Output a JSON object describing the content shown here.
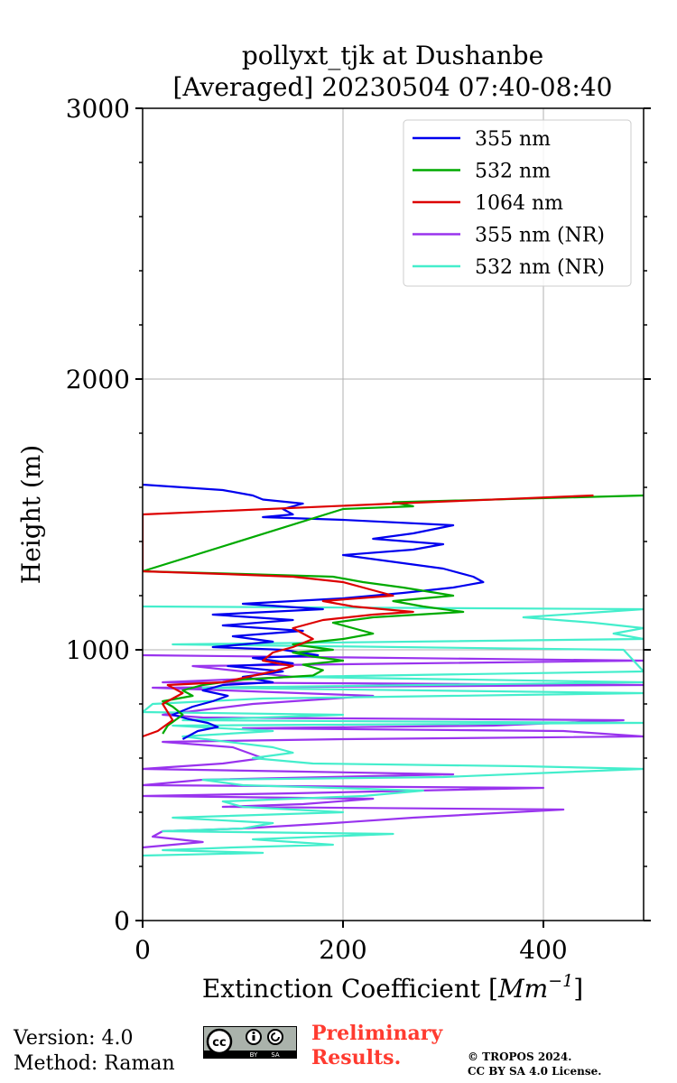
{
  "chart_data": {
    "type": "line",
    "title_line1": "pollyxt_tjk at Dushanbe",
    "title_line2": "[Averaged] 20230504 07:40-08:40",
    "xlabel_text": "Extinction Coefficient [",
    "xlabel_unit_base": "Mm",
    "xlabel_unit_exp": "−1",
    "xlabel_close": "]",
    "ylabel": "Height (m)",
    "xlim": [
      0,
      500
    ],
    "ylim": [
      0,
      3000
    ],
    "xticks": [
      0,
      200,
      400
    ],
    "yticks": [
      0,
      1000,
      2000,
      3000
    ],
    "xtick_labels": [
      "0",
      "200",
      "400"
    ],
    "ytick_labels": [
      "0",
      "1000",
      "2000",
      "3000"
    ],
    "grid": true,
    "legend_position": "top-right",
    "series": [
      {
        "name": "355 nm",
        "color": "#0000ee",
        "points": [
          [
            40,
            670
          ],
          [
            55,
            700
          ],
          [
            75,
            715
          ],
          [
            65,
            730
          ],
          [
            45,
            745
          ],
          [
            30,
            760
          ],
          [
            50,
            790
          ],
          [
            70,
            810
          ],
          [
            85,
            830
          ],
          [
            60,
            850
          ],
          [
            80,
            870
          ],
          [
            130,
            880
          ],
          [
            100,
            900
          ],
          [
            140,
            920
          ],
          [
            85,
            940
          ],
          [
            150,
            950
          ],
          [
            110,
            970
          ],
          [
            175,
            980
          ],
          [
            140,
            1000
          ],
          [
            70,
            1010
          ],
          [
            130,
            1030
          ],
          [
            90,
            1050
          ],
          [
            160,
            1070
          ],
          [
            80,
            1090
          ],
          [
            150,
            1110
          ],
          [
            70,
            1130
          ],
          [
            180,
            1150
          ],
          [
            100,
            1170
          ],
          [
            200,
            1190
          ],
          [
            260,
            1210
          ],
          [
            310,
            1230
          ],
          [
            340,
            1250
          ],
          [
            330,
            1270
          ],
          [
            300,
            1300
          ],
          [
            260,
            1320
          ],
          [
            200,
            1350
          ],
          [
            270,
            1370
          ],
          [
            300,
            1390
          ],
          [
            230,
            1410
          ],
          [
            270,
            1430
          ],
          [
            310,
            1460
          ],
          [
            200,
            1480
          ],
          [
            120,
            1490
          ],
          [
            150,
            1500
          ],
          [
            140,
            1520
          ],
          [
            160,
            1540
          ],
          [
            120,
            1555
          ],
          [
            110,
            1570
          ],
          [
            80,
            1590
          ],
          [
            0,
            1610
          ]
        ]
      },
      {
        "name": "532 nm",
        "color": "#00aa00",
        "points": [
          [
            20,
            690
          ],
          [
            25,
            720
          ],
          [
            40,
            760
          ],
          [
            30,
            790
          ],
          [
            20,
            810
          ],
          [
            50,
            830
          ],
          [
            40,
            850
          ],
          [
            60,
            870
          ],
          [
            100,
            890
          ],
          [
            170,
            905
          ],
          [
            180,
            925
          ],
          [
            160,
            945
          ],
          [
            200,
            960
          ],
          [
            170,
            975
          ],
          [
            150,
            990
          ],
          [
            190,
            1000
          ],
          [
            150,
            1020
          ],
          [
            200,
            1040
          ],
          [
            230,
            1060
          ],
          [
            210,
            1080
          ],
          [
            190,
            1100
          ],
          [
            230,
            1120
          ],
          [
            320,
            1140
          ],
          [
            280,
            1160
          ],
          [
            250,
            1180
          ],
          [
            310,
            1200
          ],
          [
            260,
            1230
          ],
          [
            220,
            1250
          ],
          [
            190,
            1270
          ],
          [
            100,
            1280
          ],
          [
            0,
            1290
          ],
          [
            200,
            1520
          ],
          [
            270,
            1530
          ],
          [
            250,
            1545
          ],
          [
            500,
            1570
          ]
        ]
      },
      {
        "name": "1064 nm",
        "color": "#dd0000",
        "points": [
          [
            0,
            680
          ],
          [
            15,
            700
          ],
          [
            30,
            740
          ],
          [
            20,
            800
          ],
          [
            40,
            840
          ],
          [
            25,
            870
          ],
          [
            80,
            880
          ],
          [
            105,
            900
          ],
          [
            130,
            920
          ],
          [
            150,
            940
          ],
          [
            120,
            960
          ],
          [
            130,
            990
          ],
          [
            150,
            1010
          ],
          [
            170,
            1040
          ],
          [
            160,
            1060
          ],
          [
            150,
            1080
          ],
          [
            180,
            1110
          ],
          [
            230,
            1130
          ],
          [
            270,
            1140
          ],
          [
            210,
            1160
          ],
          [
            180,
            1180
          ],
          [
            250,
            1200
          ],
          [
            230,
            1220
          ],
          [
            200,
            1250
          ],
          [
            150,
            1270
          ],
          [
            80,
            1280
          ],
          [
            0,
            1290
          ],
          [
            0,
            1500
          ],
          [
            250,
            1540
          ],
          [
            450,
            1570
          ]
        ]
      },
      {
        "name": "355 nm (NR)",
        "color": "#9933ee",
        "points": [
          [
            0,
            270
          ],
          [
            60,
            290
          ],
          [
            10,
            310
          ],
          [
            20,
            330
          ],
          [
            100,
            340
          ],
          [
            190,
            360
          ],
          [
            270,
            380
          ],
          [
            420,
            410
          ],
          [
            80,
            420
          ],
          [
            160,
            430
          ],
          [
            230,
            450
          ],
          [
            0,
            460
          ],
          [
            150,
            470
          ],
          [
            400,
            490
          ],
          [
            0,
            500
          ],
          [
            60,
            520
          ],
          [
            310,
            540
          ],
          [
            160,
            550
          ],
          [
            0,
            560
          ],
          [
            80,
            580
          ],
          [
            120,
            600
          ],
          [
            90,
            640
          ],
          [
            20,
            660
          ],
          [
            200,
            670
          ],
          [
            500,
            680
          ],
          [
            420,
            700
          ],
          [
            100,
            710
          ],
          [
            350,
            720
          ],
          [
            480,
            740
          ],
          [
            60,
            750
          ],
          [
            20,
            760
          ],
          [
            110,
            800
          ],
          [
            230,
            830
          ],
          [
            10,
            860
          ],
          [
            500,
            870
          ],
          [
            20,
            880
          ],
          [
            150,
            900
          ],
          [
            50,
            940
          ],
          [
            500,
            960
          ],
          [
            0,
            980
          ]
        ]
      },
      {
        "name": "532 nm (NR)",
        "color": "#44eecc",
        "points": [
          [
            0,
            240
          ],
          [
            120,
            250
          ],
          [
            20,
            260
          ],
          [
            90,
            270
          ],
          [
            190,
            280
          ],
          [
            110,
            300
          ],
          [
            250,
            320
          ],
          [
            20,
            330
          ],
          [
            100,
            340
          ],
          [
            130,
            360
          ],
          [
            30,
            380
          ],
          [
            200,
            400
          ],
          [
            100,
            420
          ],
          [
            80,
            440
          ],
          [
            220,
            460
          ],
          [
            280,
            480
          ],
          [
            100,
            500
          ],
          [
            60,
            520
          ],
          [
            300,
            530
          ],
          [
            500,
            560
          ],
          [
            380,
            570
          ],
          [
            170,
            580
          ],
          [
            110,
            600
          ],
          [
            150,
            620
          ],
          [
            130,
            640
          ],
          [
            40,
            680
          ],
          [
            130,
            700
          ],
          [
            30,
            720
          ],
          [
            500,
            730
          ],
          [
            40,
            740
          ],
          [
            200,
            760
          ],
          [
            0,
            770
          ],
          [
            10,
            800
          ],
          [
            120,
            820
          ],
          [
            500,
            840
          ],
          [
            60,
            860
          ],
          [
            500,
            880
          ],
          [
            150,
            900
          ],
          [
            500,
            920
          ],
          [
            480,
            1000
          ],
          [
            30,
            1020
          ],
          [
            500,
            1040
          ],
          [
            470,
            1060
          ],
          [
            500,
            1080
          ],
          [
            450,
            1100
          ],
          [
            380,
            1120
          ],
          [
            500,
            1150
          ],
          [
            0,
            1160
          ]
        ]
      }
    ]
  },
  "footer": {
    "version": "Version: 4.0",
    "method": "Method: Raman",
    "preliminary_line1": "Preliminary",
    "preliminary_line2": "Results.",
    "copyright_line1": "© TROPOS 2024.",
    "copyright_line2": "CC BY SA 4.0 License.",
    "license_badge": {
      "label_by": "BY",
      "label_sa": "SA",
      "icon": "cc-by-sa-icon"
    }
  }
}
